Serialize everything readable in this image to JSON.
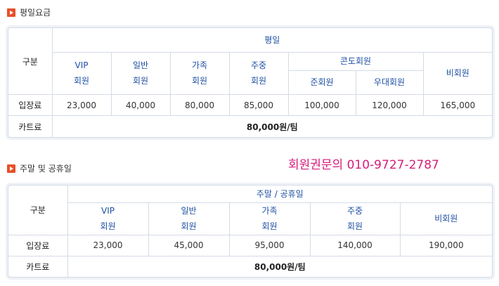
{
  "weekday": {
    "title": "평일요금",
    "row_header": "구분",
    "group_header": "평일",
    "condo_header": "콘도회원",
    "cols": [
      {
        "l1": "VIP",
        "l2": "회원"
      },
      {
        "l1": "일반",
        "l2": "회원"
      },
      {
        "l1": "가족",
        "l2": "회원"
      },
      {
        "l1": "주중",
        "l2": "회원"
      }
    ],
    "condo_cols": [
      "준회원",
      "우대회원"
    ],
    "nonmember": "비회원",
    "fee_label": "입장료",
    "fees": [
      "23,000",
      "40,000",
      "80,000",
      "85,000",
      "100,000",
      "120,000",
      "165,000"
    ],
    "cart_label": "카트료",
    "cart_fee": "80,000원/팀"
  },
  "weekend": {
    "title": "주말 및 공휴일",
    "row_header": "구분",
    "group_header": "주말 / 공휴일",
    "cols": [
      {
        "l1": "VIP",
        "l2": "회원"
      },
      {
        "l1": "일반",
        "l2": "회원"
      },
      {
        "l1": "가족",
        "l2": "회원"
      },
      {
        "l1": "주중",
        "l2": "회원"
      }
    ],
    "nonmember": "비회원",
    "fee_label": "입장료",
    "fees": [
      "23,000",
      "45,000",
      "95,000",
      "140,000",
      "190,000"
    ],
    "cart_label": "카트료",
    "cart_fee": "80,000원/팀"
  },
  "inquiry": "회원권문의 010-9727-2787",
  "colors": {
    "accent": "#e8502a",
    "header_text": "#1e4fa3",
    "inquiry": "#d61c7a",
    "border": "#d4dbe6"
  }
}
